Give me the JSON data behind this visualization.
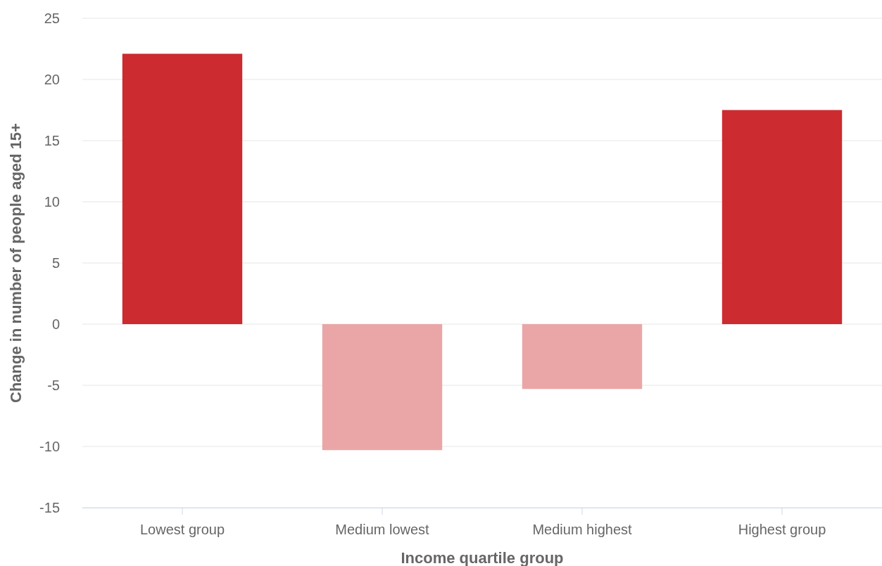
{
  "chart_data": {
    "type": "bar",
    "xlabel": "Income quartile group",
    "ylabel": "Change in number of people aged 15+",
    "categories": [
      "Lowest group",
      "Medium lowest",
      "Medium highest",
      "Highest group"
    ],
    "values": [
      22.1,
      -10.3,
      -5.3,
      17.5
    ],
    "colors": [
      "#cc2b30",
      "#eaa6a7",
      "#eaa6a7",
      "#cc2b30"
    ],
    "ylim": [
      -15,
      25
    ],
    "yticks": [
      -15,
      -10,
      -5,
      0,
      5,
      10,
      15,
      20,
      25
    ],
    "grid": "y"
  }
}
